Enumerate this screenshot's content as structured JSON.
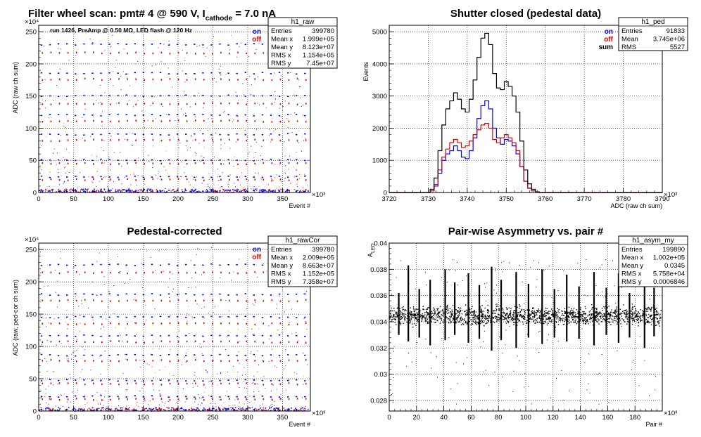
{
  "colors": {
    "on": "#0000ff",
    "off": "#dd0000",
    "sum": "#000000",
    "frame": "#000000",
    "grid": "#000000"
  },
  "main_title": {
    "a": "Filter wheel scan: pmt#   4 @   590 V, I",
    "sub": "cathode",
    "b": " = 7.0 nA"
  },
  "chart_data": [
    {
      "id": "raw",
      "type": "scatter",
      "title": "",
      "xlabel": "Event #",
      "ylabel": "ADC (raw ch sum)",
      "xlim": [
        0,
        390
      ],
      "ylim": [
        0,
        260
      ],
      "x_exponent": "×10³",
      "y_exponent": "×10⁴",
      "xticks": [
        "0",
        "50",
        "100",
        "150",
        "200",
        "250",
        "300",
        "350"
      ],
      "yticks": [
        "0",
        "50",
        "100",
        "150",
        "200",
        "250"
      ],
      "annotation": "run 1426, PreAmp @ 0.50 MΩ,  LED flash @  120 Hz",
      "legend": [
        "on",
        "off"
      ],
      "stats": {
        "name": "h1_raw",
        "rows": [
          [
            "Entries",
            "399780"
          ],
          [
            "Mean x",
            "1.999e+05"
          ],
          [
            "Mean y",
            "8.123e+07"
          ],
          [
            "RMS x",
            "1.154e+05"
          ],
          [
            "RMS y",
            "7.45e+07"
          ]
        ]
      },
      "level_rows": [
        {
          "y": 230,
          "color": "on"
        },
        {
          "y": 217,
          "color": "off"
        },
        {
          "y": 185,
          "color": "on"
        },
        {
          "y": 176,
          "color": "off"
        },
        {
          "y": 150,
          "color": "on"
        },
        {
          "y": 138,
          "color": "off"
        },
        {
          "y": 120,
          "color": "on"
        },
        {
          "y": 111,
          "color": "off"
        },
        {
          "y": 90,
          "color": "on"
        },
        {
          "y": 81,
          "color": "off"
        },
        {
          "y": 50,
          "color": "on"
        },
        {
          "y": 45,
          "color": "off"
        },
        {
          "y": 24,
          "color": "on"
        },
        {
          "y": 20,
          "color": "off"
        },
        {
          "y": 2,
          "color": "on"
        }
      ]
    },
    {
      "id": "ped",
      "type": "line",
      "title": "Shutter closed (pedestal data)",
      "xlabel": "ADC (raw ch sum)",
      "ylabel": "Events",
      "xlim": [
        3720,
        3790
      ],
      "ylim": [
        0,
        5200
      ],
      "x_exponent": "×10³",
      "xticks": [
        "3720",
        "3730",
        "3740",
        "3750",
        "3760",
        "3770",
        "3780",
        "3790"
      ],
      "yticks": [
        "0",
        "1000",
        "2000",
        "3000",
        "4000",
        "5000"
      ],
      "legend": [
        "on",
        "off",
        "sum"
      ],
      "stats": {
        "name": "h1_ped",
        "rows": [
          [
            "Entries",
            "91833"
          ],
          [
            "Mean",
            "3.745e+06"
          ],
          [
            "RMS",
            "5527"
          ]
        ]
      },
      "x": [
        3731,
        3732,
        3733,
        3734,
        3735,
        3736,
        3737,
        3738,
        3739,
        3740,
        3741,
        3742,
        3743,
        3744,
        3745,
        3746,
        3747,
        3748,
        3749,
        3750,
        3751,
        3752,
        3753,
        3754,
        3755,
        3756,
        3757,
        3758
      ],
      "series": [
        {
          "name": "on",
          "color": "on",
          "values": [
            50,
            200,
            600,
            1000,
            1200,
            1300,
            1450,
            1300,
            1100,
            1050,
            1300,
            1700,
            2300,
            2700,
            2850,
            2600,
            2000,
            1700,
            1500,
            1650,
            1600,
            1450,
            1200,
            800,
            350,
            130,
            50,
            10
          ]
        },
        {
          "name": "off",
          "color": "off",
          "values": [
            50,
            250,
            700,
            1100,
            1350,
            1550,
            1650,
            1550,
            1400,
            1450,
            1600,
            1800,
            1950,
            2100,
            2150,
            2000,
            1650,
            1550,
            1700,
            1800,
            1700,
            1550,
            1300,
            800,
            350,
            140,
            50,
            10
          ]
        },
        {
          "name": "sum",
          "color": "sum",
          "values": [
            100,
            450,
            1300,
            2100,
            2600,
            2850,
            3100,
            2900,
            2600,
            2500,
            2900,
            3500,
            4200,
            4800,
            4950,
            4600,
            3700,
            3250,
            3200,
            3450,
            3300,
            3000,
            2500,
            1600,
            700,
            270,
            100,
            20
          ]
        }
      ]
    },
    {
      "id": "rawCor",
      "type": "scatter",
      "title": "Pedestal-corrected",
      "xlabel": "Event #",
      "ylabel": "ADC (raw, ped-cor ch sum)",
      "xlim": [
        0,
        390
      ],
      "ylim": [
        0,
        260
      ],
      "x_exponent": "×10³",
      "y_exponent": "×10⁴",
      "xticks": [
        "0",
        "50",
        "100",
        "150",
        "200",
        "250",
        "300",
        "350"
      ],
      "yticks": [
        "0",
        "50",
        "100",
        "150",
        "200",
        "250"
      ],
      "legend": [
        "on",
        "off"
      ],
      "stats": {
        "name": "h1_rawCor",
        "rows": [
          [
            "Entries",
            "399780"
          ],
          [
            "Mean x",
            "2.009e+05"
          ],
          [
            "Mean y",
            "8.663e+07"
          ],
          [
            "RMS x",
            "1.152e+05"
          ],
          [
            "RMS y",
            "7.358e+07"
          ]
        ]
      },
      "level_rows": [
        {
          "y": 226,
          "color": "on"
        },
        {
          "y": 214,
          "color": "off"
        },
        {
          "y": 180,
          "color": "on"
        },
        {
          "y": 171,
          "color": "off"
        },
        {
          "y": 145,
          "color": "on"
        },
        {
          "y": 135,
          "color": "off"
        },
        {
          "y": 116,
          "color": "on"
        },
        {
          "y": 107,
          "color": "off"
        },
        {
          "y": 86,
          "color": "on"
        },
        {
          "y": 78,
          "color": "off"
        },
        {
          "y": 47,
          "color": "on"
        },
        {
          "y": 42,
          "color": "off"
        },
        {
          "y": 22,
          "color": "on"
        },
        {
          "y": 18,
          "color": "off"
        },
        {
          "y": 1,
          "color": "on"
        }
      ]
    },
    {
      "id": "asym",
      "type": "scatter",
      "title": "Pair-wise Asymmetry vs. pair #",
      "xlabel": "Pair #",
      "ylabel": "A_LED",
      "xlim": [
        0,
        200
      ],
      "ylim": [
        0.0272,
        0.04
      ],
      "x_exponent": "×10³",
      "xticks": [
        "0",
        "20",
        "40",
        "60",
        "80",
        "100",
        "120",
        "140",
        "160",
        "180"
      ],
      "yticks": [
        "0.028",
        "0.03",
        "0.032",
        "0.034",
        "0.036",
        "0.038",
        "0.04"
      ],
      "stats": {
        "name": "h1_asym_my",
        "rows": [
          [
            "Entries",
            "199890"
          ],
          [
            "Mean x",
            "1.002e+05"
          ],
          [
            "Mean y",
            "0.0345"
          ],
          [
            "RMS x",
            "5.758e+04"
          ],
          [
            "RMS y",
            "0.0006846"
          ]
        ]
      },
      "band": {
        "center": 0.0345,
        "halfwidth": 0.0006
      },
      "spikes": [
        {
          "x": 7,
          "top": 0.0362,
          "bottom": 0.033
        },
        {
          "x": 14,
          "top": 0.0383,
          "bottom": 0.0325
        },
        {
          "x": 22,
          "top": 0.0365,
          "bottom": 0.0328
        },
        {
          "x": 30,
          "top": 0.0372,
          "bottom": 0.0322
        },
        {
          "x": 41,
          "top": 0.038,
          "bottom": 0.0326
        },
        {
          "x": 48,
          "top": 0.037,
          "bottom": 0.033
        },
        {
          "x": 58,
          "top": 0.0377,
          "bottom": 0.0324
        },
        {
          "x": 66,
          "top": 0.0368,
          "bottom": 0.0327
        },
        {
          "x": 75,
          "top": 0.0382,
          "bottom": 0.0318
        },
        {
          "x": 82,
          "top": 0.0372,
          "bottom": 0.0326
        },
        {
          "x": 93,
          "top": 0.0378,
          "bottom": 0.032
        },
        {
          "x": 102,
          "top": 0.0369,
          "bottom": 0.0328
        },
        {
          "x": 112,
          "top": 0.038,
          "bottom": 0.0323
        },
        {
          "x": 121,
          "top": 0.0365,
          "bottom": 0.0328
        },
        {
          "x": 130,
          "top": 0.0376,
          "bottom": 0.0325
        },
        {
          "x": 139,
          "top": 0.0367,
          "bottom": 0.0327
        },
        {
          "x": 150,
          "top": 0.0378,
          "bottom": 0.0322
        },
        {
          "x": 159,
          "top": 0.0366,
          "bottom": 0.033
        },
        {
          "x": 168,
          "top": 0.0377,
          "bottom": 0.0324
        },
        {
          "x": 176,
          "top": 0.0362,
          "bottom": 0.0328
        },
        {
          "x": 187,
          "top": 0.0376,
          "bottom": 0.032
        },
        {
          "x": 194,
          "top": 0.0366,
          "bottom": 0.0329
        }
      ]
    }
  ]
}
